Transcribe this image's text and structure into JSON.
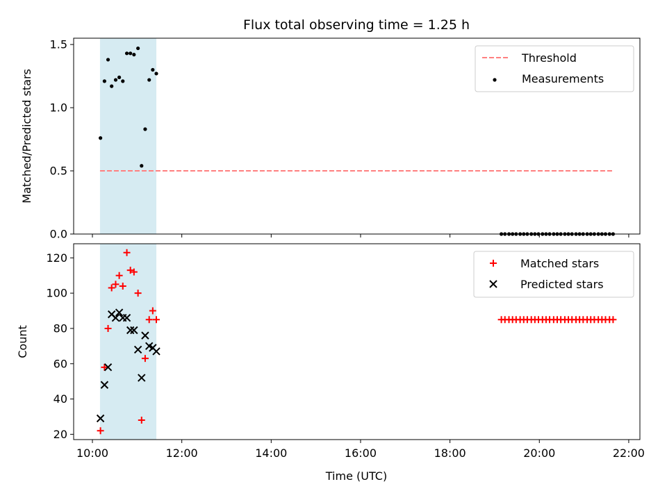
{
  "chart_data": {
    "title": "Flux total observing time = 1.25 h",
    "xlabel": "Time (UTC)",
    "x_unit": "hours (UTC)",
    "xlim": [
      9.58,
      22.25
    ],
    "xticks": [
      10,
      12,
      14,
      16,
      18,
      20,
      22
    ],
    "xtick_labels": [
      "10:00",
      "12:00",
      "14:00",
      "16:00",
      "18:00",
      "20:00",
      "22:00"
    ],
    "observing_window": [
      10.17,
      11.43
    ],
    "panels": [
      {
        "type": "scatter",
        "ylabel": "Matched/Predicted stars",
        "ylim": [
          0,
          1.55
        ],
        "yticks": [
          0,
          0.5,
          1.0,
          1.5
        ],
        "ytick_labels": [
          "0.0",
          "0.5",
          "1.0",
          "1.5"
        ],
        "legend_position": "top-right",
        "series": [
          {
            "name": "Threshold",
            "style": "dashed-line",
            "color": "#ff7f7f",
            "x": [
              10.17,
              21.67
            ],
            "y": [
              0.5,
              0.5
            ]
          },
          {
            "name": "Measurements",
            "style": "dot",
            "color": "#000000",
            "x": [
              10.18,
              10.27,
              10.35,
              10.43,
              10.52,
              10.6,
              10.68,
              10.77,
              10.85,
              10.93,
              11.02,
              11.1,
              11.18,
              11.27,
              11.35,
              11.43,
              19.15,
              19.23,
              19.32,
              19.4,
              19.48,
              19.57,
              19.65,
              19.73,
              19.82,
              19.9,
              19.98,
              20.07,
              20.15,
              20.23,
              20.32,
              20.4,
              20.48,
              20.57,
              20.65,
              20.73,
              20.82,
              20.9,
              20.98,
              21.07,
              21.15,
              21.23,
              21.32,
              21.4,
              21.48,
              21.57,
              21.65
            ],
            "y": [
              0.76,
              1.21,
              1.38,
              1.17,
              1.22,
              1.24,
              1.21,
              1.43,
              1.43,
              1.42,
              1.47,
              0.54,
              0.83,
              1.22,
              1.3,
              1.27,
              0,
              0,
              0,
              0,
              0,
              0,
              0,
              0,
              0,
              0,
              0,
              0,
              0,
              0,
              0,
              0,
              0,
              0,
              0,
              0,
              0,
              0,
              0,
              0,
              0,
              0,
              0,
              0,
              0,
              0,
              0
            ]
          }
        ]
      },
      {
        "type": "scatter",
        "ylabel": "Count",
        "ylim": [
          17,
          128
        ],
        "yticks": [
          20,
          40,
          60,
          80,
          100,
          120
        ],
        "ytick_labels": [
          "20",
          "40",
          "60",
          "80",
          "100",
          "120"
        ],
        "legend_position": "top-right",
        "series": [
          {
            "name": "Matched stars",
            "marker": "+",
            "color": "#ff0000",
            "x": [
              10.18,
              10.27,
              10.35,
              10.43,
              10.52,
              10.6,
              10.68,
              10.77,
              10.85,
              10.93,
              11.02,
              11.1,
              11.18,
              11.27,
              11.35,
              11.43,
              19.15,
              19.23,
              19.32,
              19.4,
              19.48,
              19.57,
              19.65,
              19.73,
              19.82,
              19.9,
              19.98,
              20.07,
              20.15,
              20.23,
              20.32,
              20.4,
              20.48,
              20.57,
              20.65,
              20.73,
              20.82,
              20.9,
              20.98,
              21.07,
              21.15,
              21.23,
              21.32,
              21.4,
              21.48,
              21.57,
              21.65
            ],
            "y": [
              22,
              58,
              80,
              103,
              105,
              110,
              104,
              123,
              113,
              112,
              100,
              28,
              63,
              85,
              90,
              85,
              85,
              85,
              85,
              85,
              85,
              85,
              85,
              85,
              85,
              85,
              85,
              85,
              85,
              85,
              85,
              85,
              85,
              85,
              85,
              85,
              85,
              85,
              85,
              85,
              85,
              85,
              85,
              85,
              85,
              85,
              85
            ]
          },
          {
            "name": "Predicted stars",
            "marker": "x",
            "color": "#000000",
            "x": [
              10.18,
              10.27,
              10.35,
              10.43,
              10.52,
              10.6,
              10.68,
              10.77,
              10.85,
              10.93,
              11.02,
              11.1,
              11.18,
              11.27,
              11.35,
              11.43
            ],
            "y": [
              29,
              48,
              58,
              88,
              86,
              89,
              86,
              86,
              79,
              79,
              68,
              52,
              76,
              70,
              69,
              67
            ]
          }
        ]
      }
    ]
  }
}
